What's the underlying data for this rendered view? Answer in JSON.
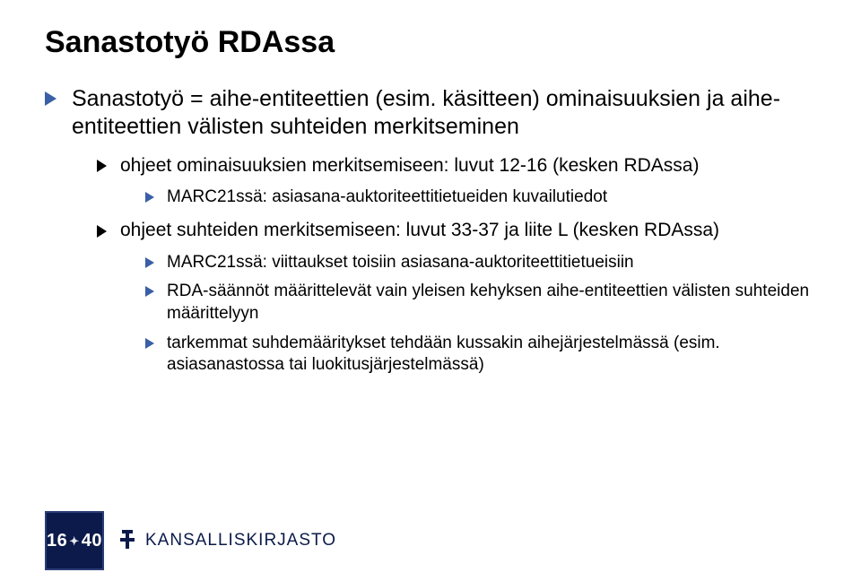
{
  "colors": {
    "accent_blue": "#3a5fa6",
    "dark_navy": "#0b1a4a",
    "text": "#000000",
    "background": "#ffffff"
  },
  "title": "Sanastotyö RDAssa",
  "bullets_lv1": [
    {
      "text": "Sanastotyö = aihe-entiteettien (esim. käsitteen) ominaisuuksien ja aihe-entiteettien välisten suhteiden merkitseminen",
      "lv2": [
        {
          "text": "ohjeet ominaisuuksien merkitsemiseen: luvut 12-16 (kesken RDAssa)",
          "lv3": [
            {
              "text": "MARC21ssä: asiasana-auktoriteettitietueiden kuvailutiedot"
            }
          ]
        },
        {
          "text": "ohjeet suhteiden merkitsemiseen: luvut 33-37 ja liite L (kesken RDAssa)",
          "lv3": [
            {
              "text": "MARC21ssä: viittaukset toisiin asiasana-auktoriteettitietueisiin"
            },
            {
              "text": "RDA-säännöt määrittelevät vain yleisen kehyksen aihe-entiteettien välisten suhteiden määrittelyyn"
            },
            {
              "text": "tarkemmat suhdemääritykset tehdään kussakin aihejärjestelmässä (esim. asiasanastossa tai luokitusjärjestelmässä)"
            }
          ]
        }
      ]
    }
  ],
  "footer": {
    "logo_year_left": "16",
    "logo_year_right": "40",
    "brand": "KANSALLISKIRJASTO"
  }
}
